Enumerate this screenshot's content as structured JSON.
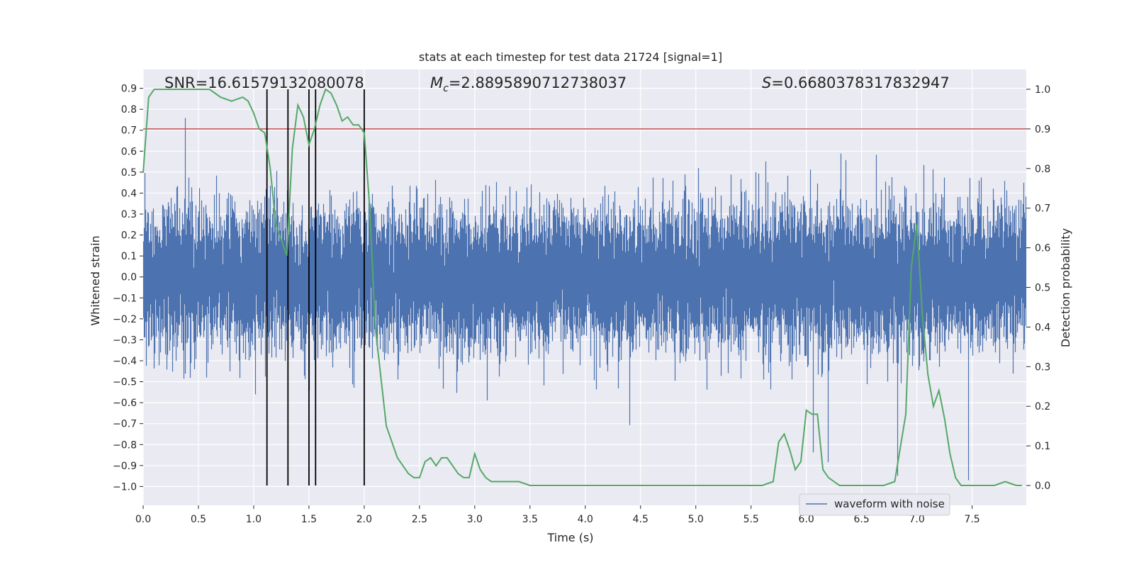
{
  "chart_data": {
    "type": "line",
    "title": "stats at each timestep for test data 21724 [signal=1]",
    "xlabel": "Time (s)",
    "ylabel_left": "Whitened strain",
    "ylabel_right": "Detection probability",
    "xlim": [
      0.0,
      7.99
    ],
    "ylim_left": [
      -1.09,
      0.99
    ],
    "ylim_right": [
      -0.05,
      1.05
    ],
    "xticks": [
      "0.0",
      "0.5",
      "1.0",
      "1.5",
      "2.0",
      "2.5",
      "3.0",
      "3.5",
      "4.0",
      "4.5",
      "5.0",
      "5.5",
      "6.0",
      "6.5",
      "7.0",
      "7.5"
    ],
    "yticks_left": [
      "0.9",
      "0.8",
      "0.7",
      "0.6",
      "0.5",
      "0.4",
      "0.3",
      "0.2",
      "0.1",
      "0.0",
      "−0.1",
      "−0.2",
      "−0.3",
      "−0.4",
      "−0.5",
      "−0.6",
      "−0.7",
      "−0.8",
      "−0.9",
      "−1.0"
    ],
    "yticks_right": [
      "1.0",
      "0.9",
      "0.8",
      "0.7",
      "0.6",
      "0.5",
      "0.4",
      "0.3",
      "0.2",
      "0.1",
      "0.0"
    ],
    "annotations": {
      "snr": "SNR=16.61579132080078",
      "mc_symbol": "M",
      "mc_subscript": "c",
      "mc_value": "=2.8895890712738037",
      "s_symbol": "S",
      "s_value": "=0.6680378317832947"
    },
    "legend": {
      "label": "waveform with noise",
      "location": "lower-right"
    },
    "threshold": 0.9,
    "event_lines": [
      1.12,
      1.31,
      1.5,
      1.56,
      2.0
    ],
    "probability": {
      "x": [
        0.0,
        0.05,
        0.1,
        0.2,
        0.3,
        0.4,
        0.5,
        0.6,
        0.65,
        0.7,
        0.8,
        0.9,
        0.95,
        1.0,
        1.05,
        1.1,
        1.15,
        1.2,
        1.3,
        1.35,
        1.4,
        1.45,
        1.5,
        1.55,
        1.6,
        1.65,
        1.7,
        1.75,
        1.8,
        1.85,
        1.9,
        1.95,
        2.0,
        2.05,
        2.1,
        2.2,
        2.3,
        2.4,
        2.45,
        2.5,
        2.55,
        2.6,
        2.65,
        2.7,
        2.75,
        2.8,
        2.85,
        2.9,
        2.95,
        3.0,
        3.05,
        3.1,
        3.15,
        3.2,
        3.3,
        3.4,
        3.5,
        3.6,
        3.7,
        3.8,
        4.0,
        4.2,
        4.4,
        4.6,
        4.8,
        5.0,
        5.2,
        5.4,
        5.6,
        5.7,
        5.75,
        5.8,
        5.85,
        5.9,
        5.95,
        6.0,
        6.05,
        6.1,
        6.15,
        6.2,
        6.25,
        6.3,
        6.4,
        6.5,
        6.6,
        6.7,
        6.8,
        6.9,
        6.95,
        7.0,
        7.05,
        7.1,
        7.15,
        7.2,
        7.25,
        7.3,
        7.35,
        7.4,
        7.45,
        7.5,
        7.6,
        7.7,
        7.8,
        7.9,
        7.95
      ],
      "y": [
        0.79,
        0.98,
        1.0,
        1.0,
        1.0,
        1.0,
        1.0,
        1.0,
        0.99,
        0.98,
        0.97,
        0.98,
        0.97,
        0.94,
        0.9,
        0.89,
        0.8,
        0.66,
        0.58,
        0.85,
        0.96,
        0.93,
        0.86,
        0.9,
        0.96,
        1.0,
        0.99,
        0.96,
        0.92,
        0.93,
        0.91,
        0.91,
        0.89,
        0.7,
        0.4,
        0.15,
        0.07,
        0.03,
        0.02,
        0.02,
        0.06,
        0.07,
        0.05,
        0.07,
        0.07,
        0.05,
        0.03,
        0.02,
        0.02,
        0.08,
        0.04,
        0.02,
        0.01,
        0.01,
        0.01,
        0.01,
        0.0,
        0.0,
        0.0,
        0.0,
        0.0,
        0.0,
        0.0,
        0.0,
        0.0,
        0.0,
        0.0,
        0.0,
        0.0,
        0.01,
        0.11,
        0.13,
        0.09,
        0.04,
        0.06,
        0.19,
        0.18,
        0.18,
        0.04,
        0.02,
        0.01,
        0.0,
        0.0,
        0.0,
        0.0,
        0.0,
        0.01,
        0.18,
        0.55,
        0.66,
        0.43,
        0.28,
        0.2,
        0.24,
        0.17,
        0.08,
        0.02,
        0.0,
        0.0,
        0.0,
        0.0,
        0.0,
        0.01,
        0.0,
        0.0
      ]
    },
    "waveform": {
      "name": "waveform with noise",
      "sample_rate": 2048,
      "noise_std": 0.155,
      "seed": 21724
    },
    "colors": {
      "background": "#eaeaf2",
      "grid": "#ffffff",
      "waveform": "#4c72b0",
      "probability": "#55a868",
      "threshold": "#c44e52",
      "event": "#000000"
    }
  }
}
